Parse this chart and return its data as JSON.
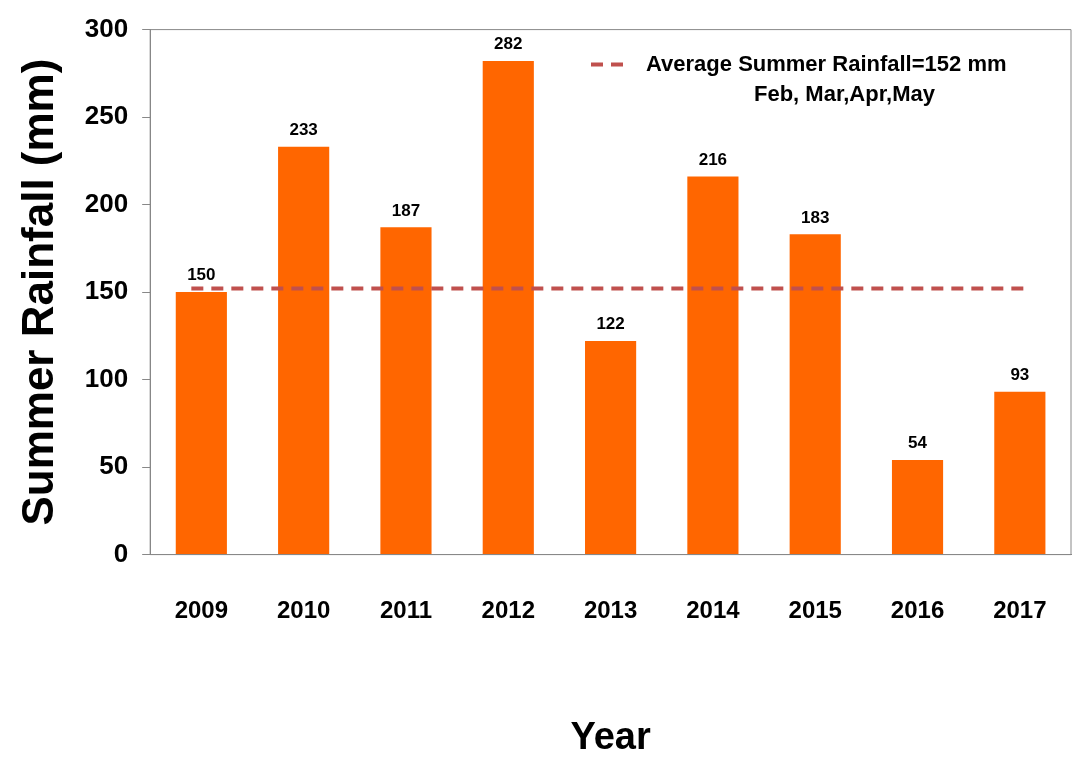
{
  "chart_data": {
    "type": "bar",
    "xlabel": "Year",
    "ylabel": "Summer Rainfall (mm)",
    "categories": [
      "2009",
      "2010",
      "2011",
      "2012",
      "2013",
      "2014",
      "2015",
      "2016",
      "2017"
    ],
    "values": [
      150,
      233,
      187,
      282,
      122,
      216,
      183,
      54,
      93
    ],
    "color": "#ff6600",
    "ylim": [
      0,
      300
    ],
    "yticks": [
      0,
      50,
      100,
      150,
      200,
      250,
      300
    ],
    "grid": false,
    "data_labels": true,
    "ref_lines": [
      {
        "axis": "y",
        "value": 152,
        "label": "Average Summer Rainfall=152 mm",
        "color": "#c0504d",
        "line_style": "dashed"
      }
    ],
    "annotations": [
      "Feb, Mar,Apr,May"
    ]
  }
}
